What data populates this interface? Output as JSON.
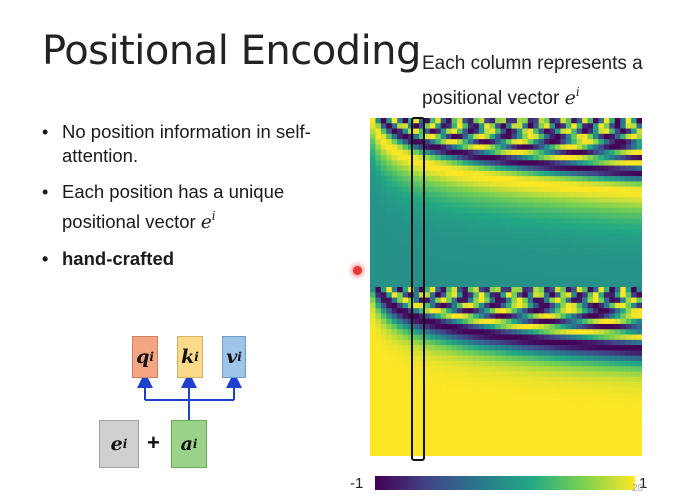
{
  "slide": {
    "title": "Positional Encoding",
    "caption_text": "Each column represents a positional vector ",
    "caption_math": "e",
    "caption_sup": "i",
    "bullets": [
      {
        "text": "No position information in self-attention."
      },
      {
        "text": "Each position has a unique positional vector ",
        "math": "e",
        "sup": "i"
      },
      {
        "text": "hand-crafted",
        "bold": true
      }
    ],
    "colorbar": {
      "min_label": "-1",
      "max_label": "1"
    },
    "page_number": "20"
  },
  "diagram": {
    "q": "q",
    "k": "k",
    "v": "v",
    "e": "e",
    "a": "a",
    "sup": "i",
    "plus": "+",
    "colors": {
      "q": "#f4a582",
      "k": "#fdd98a",
      "v": "#9ec5e8",
      "e": "#d0d0d0",
      "a": "#9cd38a",
      "arrow": "#1f3fcf"
    }
  }
}
